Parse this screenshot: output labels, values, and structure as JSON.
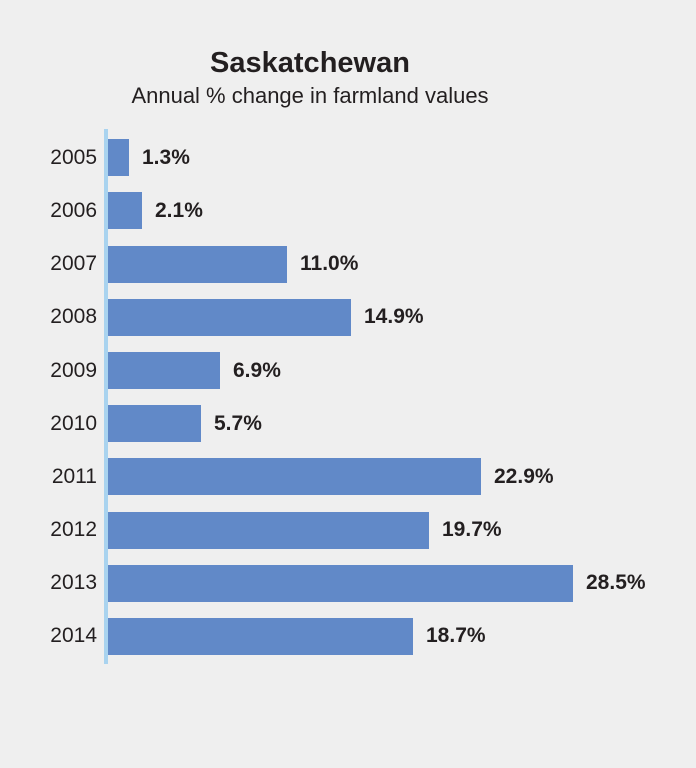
{
  "page": {
    "background": "#EFEFEF"
  },
  "chart_data": {
    "type": "bar",
    "orientation": "horizontal",
    "title": "Saskatchewan",
    "subtitle": "Annual % change in farmland values",
    "categories": [
      "2005",
      "2006",
      "2007",
      "2008",
      "2009",
      "2010",
      "2011",
      "2012",
      "2013",
      "2014"
    ],
    "values": [
      1.3,
      2.1,
      11.0,
      14.9,
      6.9,
      5.7,
      22.9,
      19.7,
      28.5,
      18.7
    ],
    "value_labels": [
      "1.3%",
      "2.1%",
      "11.0%",
      "14.9%",
      "6.9%",
      "5.7%",
      "22.9%",
      "19.7%",
      "28.5%",
      "18.7%"
    ],
    "xlabel": "",
    "ylabel": "",
    "xlim": [
      0,
      30
    ],
    "grid": false,
    "legend": false,
    "value_label_position": "right-of-bar",
    "colors": {
      "bar": "#6189C8",
      "axis_line": "#A9D3EF",
      "text": "#231F20",
      "background": "#EFEFEF"
    }
  }
}
